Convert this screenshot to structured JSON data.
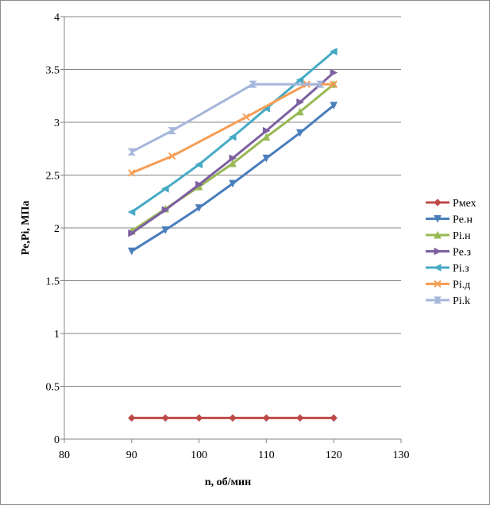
{
  "chart_data": {
    "type": "line",
    "title": "",
    "xlabel": "n, об/мин",
    "ylabel": "Pe,Pi, МПа",
    "xlim": [
      80,
      130
    ],
    "ylim": [
      0,
      4
    ],
    "xticks": [
      80,
      90,
      100,
      110,
      120,
      130
    ],
    "yticks": [
      0,
      0.5,
      1,
      1.5,
      2,
      2.5,
      3,
      3.5,
      4
    ],
    "xtick_labels": [
      "80",
      "90",
      "100",
      "110",
      "120",
      "130"
    ],
    "ytick_labels": [
      "0",
      "0.5",
      "1",
      "1.5",
      "2",
      "2.5",
      "3",
      "3.5",
      "4"
    ],
    "grid": "horizontal",
    "legend_position": "right",
    "series": [
      {
        "name": "Pмех",
        "color": "#be4b48",
        "marker": "diamond",
        "points": [
          [
            90,
            0.2
          ],
          [
            95,
            0.2
          ],
          [
            100,
            0.2
          ],
          [
            105,
            0.2
          ],
          [
            110,
            0.2
          ],
          [
            115,
            0.2
          ],
          [
            120,
            0.2
          ]
        ]
      },
      {
        "name": "Pe.н",
        "color": "#4a7ebb",
        "marker": "triangle-down",
        "points": [
          [
            90,
            1.78
          ],
          [
            95,
            1.98
          ],
          [
            100,
            2.19
          ],
          [
            105,
            2.42
          ],
          [
            110,
            2.66
          ],
          [
            115,
            2.9
          ],
          [
            120,
            3.16
          ]
        ]
      },
      {
        "name": "Pi.н",
        "color": "#98b954",
        "marker": "triangle-up",
        "points": [
          [
            90,
            1.97
          ],
          [
            95,
            2.18
          ],
          [
            100,
            2.39
          ],
          [
            105,
            2.61
          ],
          [
            110,
            2.86
          ],
          [
            115,
            3.1
          ],
          [
            120,
            3.36
          ]
        ]
      },
      {
        "name": "Pe.з",
        "color": "#7d60a0",
        "marker": "triangle-right",
        "points": [
          [
            90,
            1.95
          ],
          [
            95,
            2.17
          ],
          [
            100,
            2.41
          ],
          [
            105,
            2.66
          ],
          [
            110,
            2.92
          ],
          [
            115,
            3.19
          ],
          [
            120,
            3.47
          ]
        ]
      },
      {
        "name": "Pi.з",
        "color": "#46aac5",
        "marker": "triangle-left",
        "points": [
          [
            90,
            2.15
          ],
          [
            95,
            2.37
          ],
          [
            100,
            2.6
          ],
          [
            105,
            2.86
          ],
          [
            110,
            3.13
          ],
          [
            115,
            3.4
          ],
          [
            120,
            3.67
          ]
        ]
      },
      {
        "name": "Pi.д",
        "color": "#f59d56",
        "marker": "x",
        "points": [
          [
            90,
            2.52
          ],
          [
            96,
            2.68
          ],
          [
            107,
            3.05
          ],
          [
            116,
            3.36
          ],
          [
            120,
            3.36
          ]
        ]
      },
      {
        "name": "Pi.k",
        "color": "#a5b6da",
        "marker": "hourglass",
        "points": [
          [
            90,
            2.72
          ],
          [
            96,
            2.92
          ],
          [
            108,
            3.36
          ],
          [
            118,
            3.36
          ]
        ]
      }
    ]
  }
}
